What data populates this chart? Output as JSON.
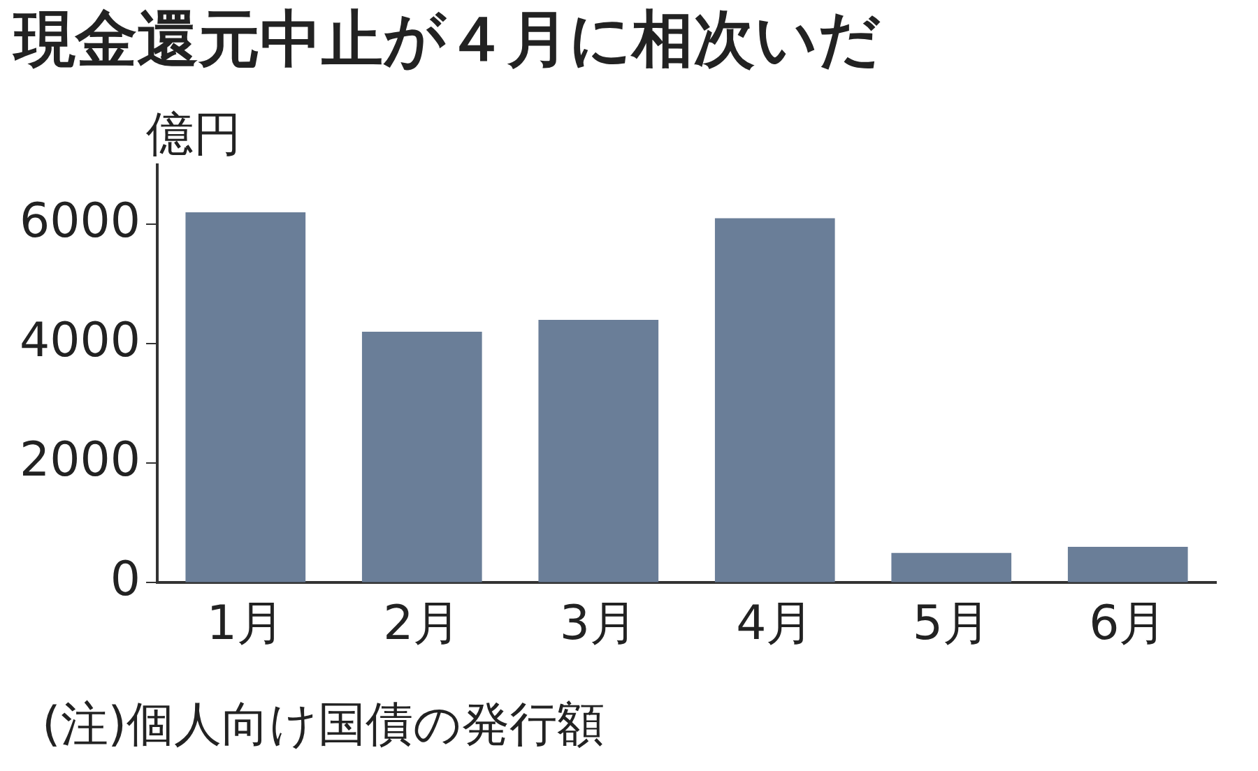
{
  "chart_data": {
    "type": "bar",
    "title": "現金還元中止が４月に相次いだ",
    "ylabel": "億円",
    "categories": [
      "1月",
      "2月",
      "3月",
      "4月",
      "5月",
      "6月"
    ],
    "values": [
      6200,
      4200,
      4400,
      6100,
      500,
      600
    ],
    "color": "#6a7e98",
    "ylim": [
      0,
      7000
    ],
    "yticks": [
      0,
      2000,
      4000,
      6000
    ],
    "grid": false,
    "legend": false,
    "annotations": [
      "(注)個人向け国債の発行額"
    ]
  }
}
